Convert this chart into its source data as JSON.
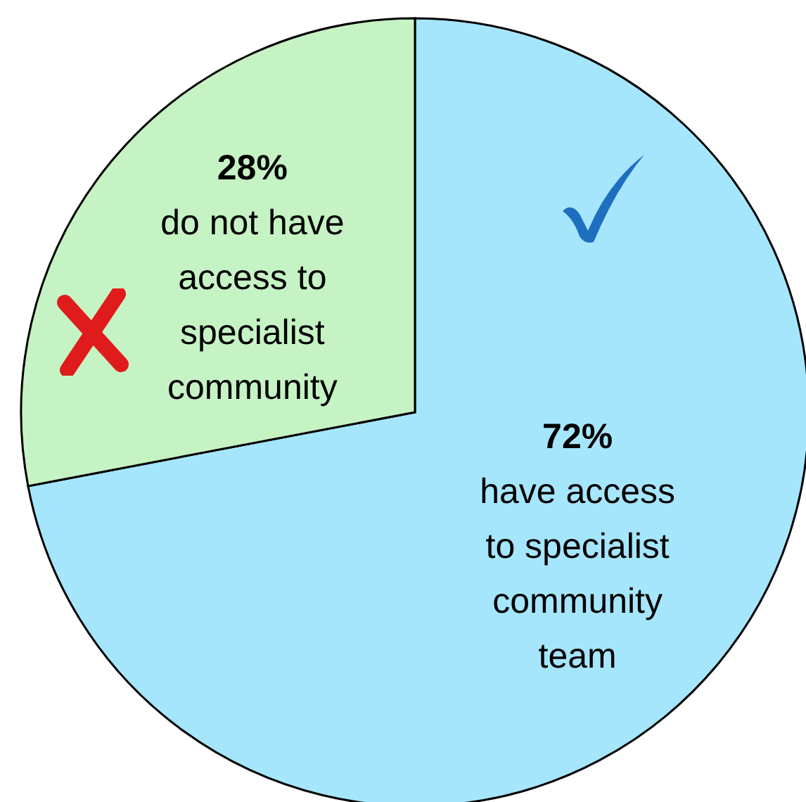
{
  "chart_data": {
    "type": "pie",
    "categories": [
      "have access to specialist community team",
      "do not have access to specialist community"
    ],
    "values": [
      72,
      28
    ],
    "value_labels": [
      "72%",
      "28%"
    ],
    "colors": [
      "#a6e6fd",
      "#c6f3c4"
    ]
  }
}
